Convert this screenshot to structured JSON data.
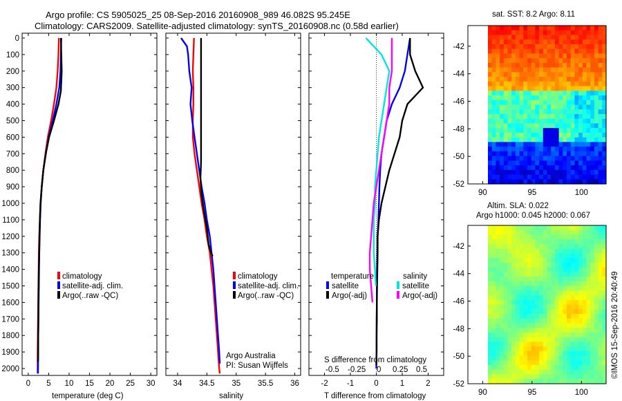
{
  "header": {
    "line1": "Argo profile: CS 5905025_25 08-Sep-2016 20160908_989 46.082S 95.245E",
    "line2": "Climatology: CARS2009. Satellite-adjusted climatology: synTS_20160908.nc (0.58d earlier)"
  },
  "side_stamp": "©IMOS 15-Sep-2016 20:40:49",
  "info": {
    "line1": "Argo Australia",
    "line2": "PI: Susan Wijffels"
  },
  "colors": {
    "climatology": "#ff0000",
    "satellite": "#0000ff",
    "argo": "#000000",
    "diff_sal_sat": "#00e5e5",
    "diff_sal_argo": "#ff00ff"
  },
  "chart_data": [
    {
      "type": "line",
      "name": "temperature-profile",
      "xlabel": "temperature (deg C)",
      "ylabel": "",
      "xlim": [
        -1.5,
        31.5
      ],
      "ylim": [
        2050,
        0
      ],
      "y_reversed": true,
      "x_ticks": [
        0,
        5,
        10,
        15,
        20,
        25,
        30
      ],
      "y_ticks": [
        0,
        100,
        200,
        300,
        400,
        500,
        600,
        700,
        800,
        900,
        1000,
        1100,
        1200,
        1300,
        1400,
        1500,
        1600,
        1700,
        1800,
        1900,
        2000
      ],
      "legend": [
        "climatology",
        "satellite-adj. clim.",
        "Argo(..raw -QC)"
      ],
      "legend_placement": "center",
      "series": [
        {
          "name": "climatology",
          "color": "#ff0000",
          "x": [
            7.5,
            7.4,
            7.2,
            6.9,
            6.3,
            5.6,
            4.8,
            4.2,
            3.7,
            3.3,
            3.0,
            2.85,
            2.7,
            2.6,
            2.55,
            2.5,
            2.45,
            2.4,
            2.35,
            2.3,
            2.3,
            2.3
          ],
          "y": [
            0,
            100,
            200,
            300,
            400,
            500,
            600,
            700,
            800,
            900,
            1000,
            1100,
            1200,
            1300,
            1400,
            1500,
            1600,
            1700,
            1800,
            1900,
            2000,
            2030
          ]
        },
        {
          "name": "satellite-adj. clim.",
          "color": "#0000ff",
          "x": [
            8.1,
            8.0,
            7.9,
            7.6,
            6.9,
            6.0,
            5.0,
            4.3,
            3.7,
            3.3,
            3.05,
            2.9,
            2.8,
            2.7,
            2.65,
            2.6,
            2.55,
            2.5,
            2.45,
            2.45,
            2.4,
            2.4
          ],
          "y": [
            0,
            100,
            200,
            300,
            400,
            500,
            600,
            700,
            800,
            900,
            1000,
            1100,
            1200,
            1300,
            1400,
            1500,
            1600,
            1700,
            1800,
            1900,
            2000,
            2030
          ]
        },
        {
          "name": "Argo(..raw -QC)",
          "color": "#000000",
          "x": [
            8.0,
            8.1,
            8.2,
            8.0,
            7.4,
            6.3,
            5.1,
            4.3,
            3.7,
            3.3,
            3.0,
            2.85,
            2.75,
            2.7,
            2.6,
            2.55,
            2.5,
            2.5,
            2.45,
            2.45,
            2.4
          ],
          "y": [
            0,
            100,
            200,
            320,
            400,
            500,
            600,
            700,
            800,
            900,
            1000,
            1100,
            1200,
            1300,
            1400,
            1500,
            1600,
            1700,
            1800,
            1900,
            1960
          ]
        }
      ]
    },
    {
      "type": "line",
      "name": "salinity-profile",
      "xlabel": "salinity",
      "ylabel": "",
      "xlim": [
        33.8,
        36.1
      ],
      "ylim": [
        2050,
        0
      ],
      "y_reversed": true,
      "x_ticks": [
        34,
        34.5,
        35,
        35.5,
        36
      ],
      "legend": [
        "climatology",
        "satellite-adj. clim.",
        "Argo(..raw -QC)"
      ],
      "legend_placement": "center-right",
      "series": [
        {
          "name": "climatology",
          "color": "#ff0000",
          "x": [
            34.28,
            34.27,
            34.26,
            34.27,
            34.27,
            34.26,
            34.26,
            34.29,
            34.33,
            34.37,
            34.41,
            34.46,
            34.5,
            34.55,
            34.58,
            34.61,
            34.63,
            34.65,
            34.67,
            34.69,
            34.71,
            34.72
          ],
          "y": [
            0,
            100,
            200,
            300,
            400,
            500,
            600,
            700,
            800,
            900,
            1000,
            1100,
            1200,
            1300,
            1400,
            1500,
            1600,
            1700,
            1800,
            1900,
            2000,
            2030
          ]
        },
        {
          "name": "satellite-adj. clim.",
          "color": "#0000ff",
          "x": [
            34.06,
            34.16,
            34.18,
            34.2,
            34.24,
            34.22,
            34.25,
            34.29,
            34.33,
            34.37,
            34.41,
            34.46,
            34.5,
            34.55,
            34.58,
            34.61,
            34.63,
            34.65,
            34.67,
            34.69,
            34.71,
            34.72
          ],
          "y": [
            0,
            50,
            100,
            200,
            300,
            400,
            500,
            600,
            700,
            800,
            900,
            1000,
            1100,
            1200,
            1300,
            1400,
            1500,
            1600,
            1700,
            1800,
            1900,
            1970
          ]
        },
        {
          "name": "Argo(..raw -QC)",
          "color": "#000000",
          "x": [
            34.4,
            34.4,
            34.4,
            34.4,
            34.4,
            34.4,
            34.4,
            34.4,
            34.4,
            34.39,
            34.41,
            34.45,
            34.5,
            34.53,
            34.57,
            34.6
          ],
          "y": [
            0,
            100,
            200,
            300,
            400,
            500,
            600,
            700,
            750,
            850,
            950,
            1050,
            1150,
            1250,
            1300,
            1320
          ]
        }
      ]
    },
    {
      "type": "line",
      "name": "difference-profile",
      "xlabel": "T difference from climatology",
      "top_label": "S difference from climatology",
      "xlim": [
        -2.6,
        2.6
      ],
      "ylim": [
        2050,
        0
      ],
      "y_reversed": true,
      "x_ticks": [
        -2,
        -1,
        0,
        1,
        2
      ],
      "top_ticks": [
        "-0.5",
        "-0.25",
        "0",
        "0.25",
        "0.5"
      ],
      "legend": {
        "temperature_header": "temperature",
        "salinity_header": "salinity",
        "temp_items": [
          "satellite",
          "Argo(-adj)"
        ],
        "sal_items": [
          "satellite",
          "Argo(-adj)"
        ]
      },
      "series": [
        {
          "name": "temperature satellite",
          "color": "#0000ff",
          "x": [
            1.3,
            1.2,
            1.1,
            0.9,
            0.6,
            0.4,
            0.3,
            0.2,
            0.15,
            0.12,
            0.1,
            0.08,
            0.05,
            0.04,
            0.03,
            0.02,
            0.02,
            0.01,
            0.01,
            0.01,
            0.0
          ],
          "y": [
            0,
            100,
            200,
            300,
            400,
            500,
            600,
            700,
            800,
            900,
            1000,
            1100,
            1200,
            1300,
            1400,
            1500,
            1600,
            1700,
            1800,
            1900,
            2000
          ]
        },
        {
          "name": "temperature Argo(-adj)",
          "color": "#000000",
          "x": [
            1.3,
            1.3,
            1.5,
            1.8,
            1.2,
            1.0,
            0.9,
            0.7,
            0.5,
            0.35,
            0.2,
            0.1,
            0.05,
            0.05,
            0.04,
            0.03,
            0.02,
            0.02,
            0.01,
            0.01,
            0.0
          ],
          "y": [
            0,
            100,
            200,
            300,
            400,
            500,
            600,
            700,
            800,
            900,
            1000,
            1100,
            1200,
            1300,
            1400,
            1500,
            1600,
            1700,
            1800,
            1900,
            1980
          ]
        },
        {
          "name": "salinity satellite",
          "color": "#00e5e5",
          "x": [
            -0.4,
            0.2,
            0.5,
            0.4,
            0.3,
            0.2,
            0.1,
            0.05,
            0.0,
            -0.05,
            -0.05,
            -0.1,
            -0.1,
            -0.1,
            -0.05,
            -0.02
          ],
          "y": [
            0,
            100,
            200,
            300,
            400,
            500,
            600,
            700,
            800,
            900,
            1000,
            1100,
            1200,
            1300,
            1400,
            1500
          ]
        },
        {
          "name": "salinity Argo(-adj)",
          "color": "#ff00ff",
          "x": [
            0.6,
            0.6,
            0.6,
            0.5,
            0.5,
            0.4,
            0.3,
            0.2,
            0.1,
            0.0,
            -0.1,
            -0.15,
            -0.2,
            -0.25,
            -0.25,
            -0.2,
            -0.15
          ],
          "y": [
            0,
            100,
            200,
            300,
            400,
            500,
            600,
            700,
            800,
            900,
            1000,
            1100,
            1200,
            1300,
            1400,
            1500,
            1600
          ]
        }
      ]
    },
    {
      "type": "heatmap",
      "name": "sst-map",
      "title": "sat. SST: 8.2  Argo: 8.11",
      "xlim": [
        88.5,
        102.5
      ],
      "ylim": [
        -52,
        -40.5
      ],
      "x_ticks": [
        90,
        95,
        100
      ],
      "y_ticks": [
        -42,
        -44,
        -46,
        -48,
        -50,
        -52
      ],
      "colormap": "jet"
    },
    {
      "type": "heatmap",
      "name": "sla-map",
      "title_line1": "Altim. SLA: 0.022",
      "title_line2": "Argo h1000: 0.045  h2000: 0.067",
      "xlim": [
        88.5,
        102.5
      ],
      "ylim": [
        -52,
        -40.5
      ],
      "x_ticks": [
        90,
        95,
        100
      ],
      "y_ticks": [
        -42,
        -44,
        -46,
        -48,
        -50,
        -52
      ],
      "colormap": "jet"
    }
  ]
}
